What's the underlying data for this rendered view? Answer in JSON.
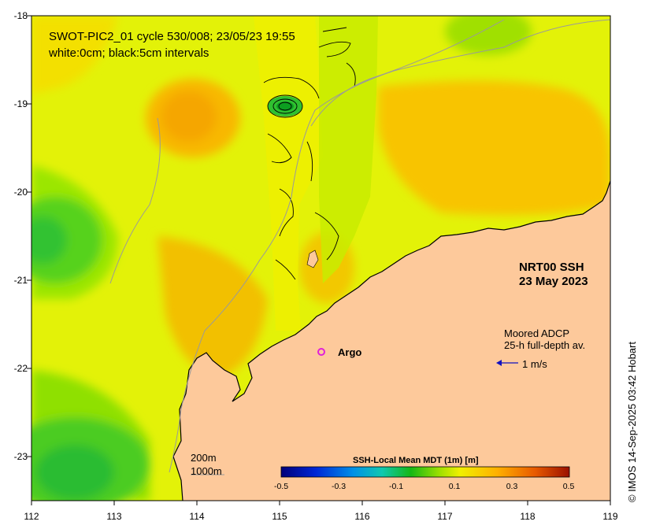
{
  "title": {
    "line1": "SWOT-PIC2_01 cycle 530/008; 23/05/23 19:55",
    "line2": "white:0cm; black:5cm intervals"
  },
  "product": {
    "line1": "NRT00 SSH",
    "line2": "23 May 2023"
  },
  "adcp": {
    "line1": "Moored ADCP",
    "line2": "25-h full-depth av.",
    "scale_label": "1 m/s"
  },
  "argo_label": "Argo",
  "contours": {
    "label_200": "200m",
    "label_1000": "1000m"
  },
  "colorbar": {
    "title": "SSH-Local Mean MDT (1m) [m]",
    "ticks": [
      "-0.5",
      "-0.3",
      "-0.1",
      "0.1",
      "0.3",
      "0.5"
    ],
    "range": [
      -0.5,
      0.5
    ]
  },
  "axes": {
    "x_ticks": [
      "112",
      "113",
      "114",
      "115",
      "116",
      "117",
      "118",
      "119"
    ],
    "y_ticks": [
      "-18",
      "-19",
      "-20",
      "-21",
      "-22",
      "-23"
    ],
    "x_range": [
      112,
      119
    ],
    "y_range": [
      -23.5,
      -18
    ]
  },
  "credit": "© IMOS 14-Sep-2025 03:42 Hobart",
  "colors": {
    "land": "#fdc99b",
    "sea_base": "#e2f205",
    "high": "#f5a800",
    "low": "#2ec42e",
    "argo": "#e020d8",
    "arrow": "#1010c0"
  }
}
